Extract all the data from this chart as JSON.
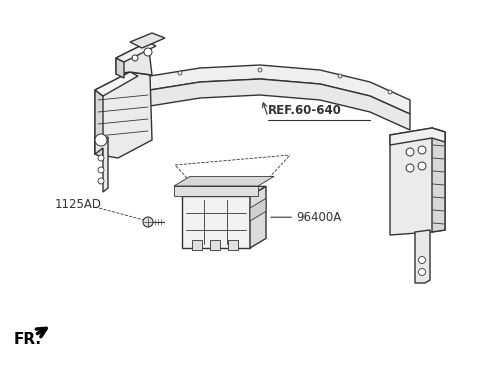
{
  "bg_color": "#ffffff",
  "line_color": "#333333",
  "label_ref": "REF.60-640",
  "label_96400": "96400A",
  "label_1125": "1125AD",
  "label_fr": "FR.",
  "figsize": [
    4.8,
    3.65
  ],
  "dpi": 100
}
